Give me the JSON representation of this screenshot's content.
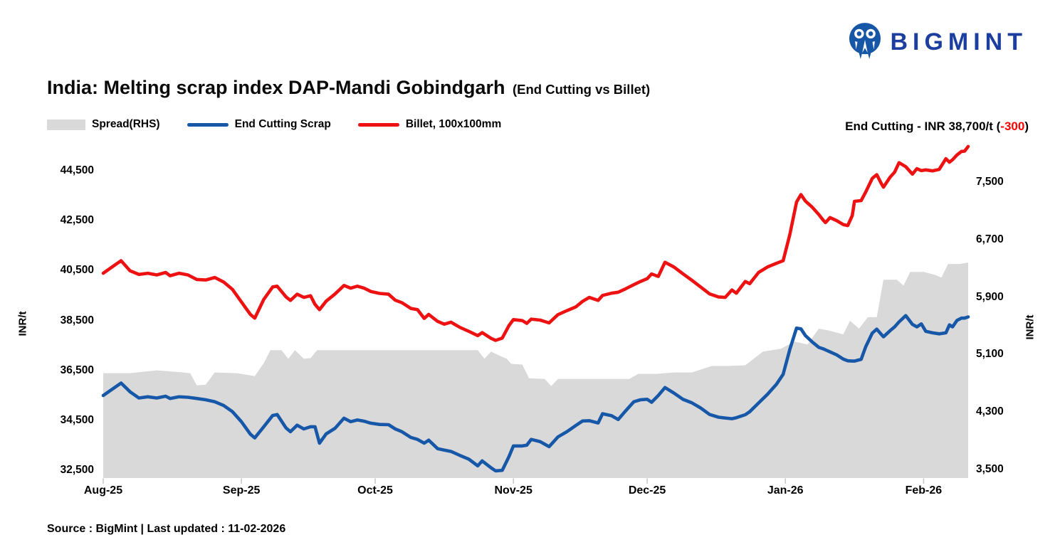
{
  "logo": {
    "text": "BIGMINT",
    "color": "#1c3f9f"
  },
  "title": {
    "main": "India: Melting scrap index DAP-Mandi Gobindgarh",
    "suffix": "(End Cutting vs Billet)"
  },
  "legend": {
    "items": [
      {
        "label": "Spread(RHS)",
        "type": "area",
        "color": "#d9d9d9"
      },
      {
        "label": "End Cutting Scrap",
        "type": "line",
        "color": "#1657a8"
      },
      {
        "label": "Billet, 100x100mm",
        "type": "line",
        "color": "#ed1111"
      }
    ]
  },
  "annotation": {
    "prefix": "End Cutting - INR 38,700/t (",
    "change": "-300",
    "suffix": ")",
    "change_color": "#ff0000"
  },
  "source_note": "Source : BigMint | Last updated : 11-02-2026",
  "chart_data": {
    "type": "combo: area (right axis) + 2 lines (left axis)",
    "title": "India: Melting scrap index DAP-Mandi Gobindgarh (End Cutting vs Billet)",
    "x_unit": "days since 01-Aug-2025",
    "x_max_day": 194,
    "x_tick_labels": [
      "Aug-25",
      "Sep-25",
      "Oct-25",
      "Nov-25",
      "Dec-25",
      "Jan-26",
      "Feb-26"
    ],
    "x_tick_days": [
      0,
      31,
      61,
      92,
      122,
      153,
      184
    ],
    "left_axis": {
      "label": "INR/t",
      "min": 32500,
      "max": 44500,
      "tick_step": 2000
    },
    "right_axis": {
      "label": "INR/t",
      "min": 3500,
      "max": 7500,
      "tick_step": 800
    },
    "grid": false,
    "legend_position": "top-left",
    "series": [
      {
        "name": "Spread(RHS)",
        "type": "area",
        "axis": "right",
        "color": "#d9d9d9",
        "x": [
          0,
          6,
          12,
          18,
          19.5,
          21,
          23,
          25,
          30,
          34,
          36,
          37.5,
          40,
          41.5,
          43,
          45,
          46.5,
          48,
          51,
          60,
          70,
          80,
          84,
          85.5,
          87,
          89,
          90.5,
          91.5,
          94,
          95.5,
          99,
          100.5,
          102,
          106,
          112,
          118,
          120,
          124,
          128,
          132,
          136.5,
          140,
          144,
          148,
          152,
          155,
          158,
          160.5,
          163,
          166,
          167.5,
          169.5,
          171.5,
          173.5,
          175,
          178,
          179.5,
          181,
          184,
          186.5,
          188,
          189.5,
          192,
          194
        ],
        "values": [
          4860,
          4860,
          4900,
          4870,
          4860,
          4690,
          4700,
          4870,
          4860,
          4820,
          5000,
          5180,
          5180,
          5060,
          5180,
          5060,
          5070,
          5180,
          5180,
          5180,
          5180,
          5180,
          5180,
          5060,
          5160,
          5100,
          5060,
          4990,
          4980,
          4790,
          4780,
          4680,
          4780,
          4780,
          4780,
          4780,
          4850,
          4850,
          4870,
          4870,
          4960,
          4960,
          4970,
          5160,
          5200,
          5300,
          5260,
          5480,
          5450,
          5400,
          5590,
          5480,
          5640,
          5640,
          6160,
          6160,
          6080,
          6270,
          6270,
          6230,
          6190,
          6380,
          6380,
          6400
        ]
      },
      {
        "name": "End Cutting Scrap",
        "type": "line",
        "axis": "left",
        "color": "#1657a8",
        "x": [
          0,
          2,
          4,
          6,
          8,
          10,
          12,
          14,
          15,
          17,
          19,
          21,
          23,
          25,
          27,
          29,
          31,
          33,
          34,
          36,
          38,
          39,
          41,
          42,
          43.5,
          45,
          46.5,
          47.5,
          48.5,
          50,
          52,
          54,
          55.5,
          57,
          58.5,
          60,
          62,
          64,
          65.5,
          67,
          69,
          70.5,
          72,
          73,
          75,
          76.5,
          78,
          80,
          82,
          84,
          85,
          87,
          88,
          89.5,
          91,
          92,
          94,
          95,
          96,
          98,
          100,
          102,
          104,
          106,
          107.5,
          109,
          111,
          112,
          114,
          115.5,
          117,
          119,
          120.5,
          122,
          123,
          124.5,
          126,
          128,
          130,
          132,
          134,
          136,
          138,
          139.5,
          141,
          142,
          144,
          145,
          147,
          149,
          151,
          152.5,
          154,
          155.5,
          156.5,
          157.5,
          159,
          160.5,
          161.5,
          162,
          163,
          164.5,
          166,
          167,
          168,
          168.5,
          170,
          171,
          172.5,
          173.5,
          174.5,
          175,
          176.5,
          177.5,
          178.5,
          180,
          181.5,
          182.5,
          183.5,
          184.5,
          186,
          187.5,
          189,
          189.8,
          190.5,
          191.5,
          192.5,
          193.2,
          194
        ],
        "values": [
          35550,
          35800,
          36050,
          35700,
          35450,
          35500,
          35450,
          35520,
          35430,
          35500,
          35480,
          35430,
          35380,
          35300,
          35150,
          34900,
          34500,
          34000,
          33850,
          34300,
          34750,
          34790,
          34250,
          34100,
          34360,
          34210,
          34300,
          34300,
          33640,
          34010,
          34240,
          34640,
          34500,
          34570,
          34520,
          34440,
          34390,
          34380,
          34210,
          34100,
          33870,
          33790,
          33640,
          33760,
          33420,
          33360,
          33310,
          33150,
          33000,
          32730,
          32930,
          32650,
          32530,
          32550,
          33100,
          33530,
          33530,
          33560,
          33790,
          33700,
          33500,
          33890,
          34100,
          34350,
          34530,
          34540,
          34450,
          34820,
          34740,
          34590,
          34900,
          35300,
          35380,
          35400,
          35280,
          35550,
          35870,
          35650,
          35400,
          35260,
          35050,
          34790,
          34680,
          34650,
          34620,
          34660,
          34780,
          34900,
          35250,
          35600,
          36000,
          36400,
          37400,
          38250,
          38220,
          37950,
          37700,
          37480,
          37420,
          37380,
          37300,
          37180,
          37010,
          36940,
          36930,
          36930,
          37000,
          37500,
          38050,
          38210,
          38000,
          37900,
          38150,
          38300,
          38500,
          38750,
          38400,
          38300,
          38420,
          38120,
          38060,
          38020,
          38060,
          38380,
          38300,
          38560,
          38650,
          38650,
          38700
        ]
      },
      {
        "name": "Billet, 100x100mm",
        "type": "line",
        "axis": "left",
        "color": "#ed1111",
        "x": [
          0,
          2,
          4,
          6,
          8,
          10,
          12,
          14,
          15,
          17,
          19,
          21,
          23,
          25,
          27,
          29,
          31,
          33,
          34,
          36,
          38,
          39,
          41,
          42,
          43.5,
          45,
          46.5,
          47.5,
          48.5,
          50,
          52,
          54,
          55.5,
          57,
          58.5,
          60,
          62,
          64,
          65.5,
          67,
          69,
          70.5,
          72,
          73,
          75,
          76.5,
          78,
          80,
          82,
          84,
          85,
          87,
          88,
          89.5,
          91,
          92,
          94,
          95,
          96,
          98,
          100,
          102,
          104,
          106,
          107.5,
          109,
          111,
          112,
          114,
          115.5,
          117,
          119,
          120.5,
          122,
          123,
          124.5,
          126,
          128,
          130,
          132,
          134,
          136,
          138,
          139.5,
          141,
          142,
          144,
          145,
          147,
          149,
          151,
          152.5,
          154,
          155.5,
          156.5,
          157.5,
          159,
          160.5,
          161.5,
          162,
          163,
          164.5,
          166,
          167,
          168,
          168.5,
          170,
          171,
          172.5,
          173.5,
          174.5,
          175,
          176.5,
          177.5,
          178.5,
          180,
          181.5,
          182.5,
          183.5,
          184.5,
          186,
          187.5,
          189,
          189.8,
          190.5,
          191.5,
          192.5,
          193.2,
          194
        ],
        "values": [
          40450,
          40700,
          40950,
          40550,
          40400,
          40450,
          40380,
          40480,
          40350,
          40450,
          40380,
          40200,
          40180,
          40280,
          40100,
          39800,
          39300,
          38800,
          38650,
          39400,
          39900,
          39930,
          39500,
          39360,
          39610,
          39480,
          39550,
          39200,
          38990,
          39330,
          39620,
          39960,
          39850,
          39930,
          39850,
          39720,
          39640,
          39610,
          39370,
          39270,
          39040,
          38990,
          38640,
          38800,
          38520,
          38410,
          38490,
          38280,
          38120,
          37950,
          38070,
          37840,
          37760,
          37850,
          38350,
          38590,
          38550,
          38440,
          38610,
          38570,
          38460,
          38790,
          38950,
          39100,
          39320,
          39480,
          39360,
          39560,
          39650,
          39690,
          39810,
          39990,
          40120,
          40230,
          40420,
          40320,
          40890,
          40700,
          40430,
          40170,
          39900,
          39620,
          39500,
          39480,
          39780,
          39650,
          40120,
          40030,
          40480,
          40700,
          40850,
          40950,
          42000,
          43300,
          43600,
          43340,
          43100,
          42800,
          42570,
          42480,
          42680,
          42560,
          42400,
          42360,
          42760,
          43330,
          43360,
          43700,
          44250,
          44400,
          44050,
          43900,
          44300,
          44500,
          44880,
          44720,
          44420,
          44640,
          44560,
          44590,
          44550,
          44610,
          45040,
          44900,
          45000,
          45190,
          45330,
          45340,
          45530
        ]
      }
    ]
  }
}
